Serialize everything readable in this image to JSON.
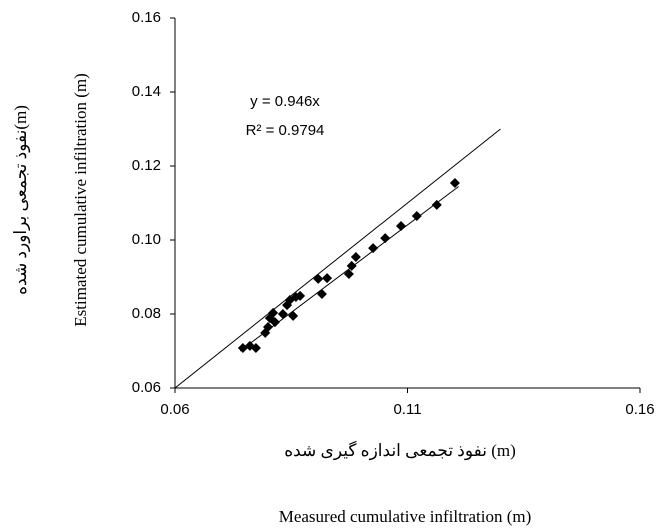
{
  "chart_data": {
    "type": "scatter",
    "x_label": "نفوذ تجمعی اندازه گیری شده (m)",
    "x_label_en": "Measured cumulative infiltration (m)",
    "y_label": "نفوذ تجمعی براورد شده(m)",
    "y_label_en": "Estimated cumulative infiltration (m)",
    "annotations": [
      "y = 0.946x",
      "R² = 0.9794"
    ],
    "x": [
      0.0746,
      0.0761,
      0.0774,
      0.0794,
      0.08,
      0.0804,
      0.0811,
      0.0815,
      0.0832,
      0.0841,
      0.0847,
      0.0854,
      0.086,
      0.0869,
      0.0908,
      0.0916,
      0.0927,
      0.0974,
      0.098,
      0.0989,
      0.1026,
      0.1052,
      0.1086,
      0.112,
      0.1163,
      0.1202
    ],
    "values": [
      0.0708,
      0.0714,
      0.0708,
      0.0749,
      0.0765,
      0.0789,
      0.0803,
      0.0778,
      0.08,
      0.0824,
      0.0838,
      0.0795,
      0.0846,
      0.0849,
      0.0895,
      0.0854,
      0.0897,
      0.0908,
      0.093,
      0.0954,
      0.0978,
      0.1005,
      0.1038,
      0.1065,
      0.1095,
      0.1154
    ],
    "color": "#000000",
    "fit_slope": 0.946,
    "fit_xlim": [
      0.074,
      0.121
    ],
    "identity_line": [
      0.06,
      0.13
    ],
    "xlim": [
      0.06,
      0.16
    ],
    "xticks": [
      0.06,
      0.11,
      0.16
    ],
    "ylim": [
      0.06,
      0.16
    ],
    "yticks": [
      0.06,
      0.08,
      {
        "value": 0.1,
        "label": "0.10"
      },
      0.12,
      0.14,
      0.16
    ]
  }
}
